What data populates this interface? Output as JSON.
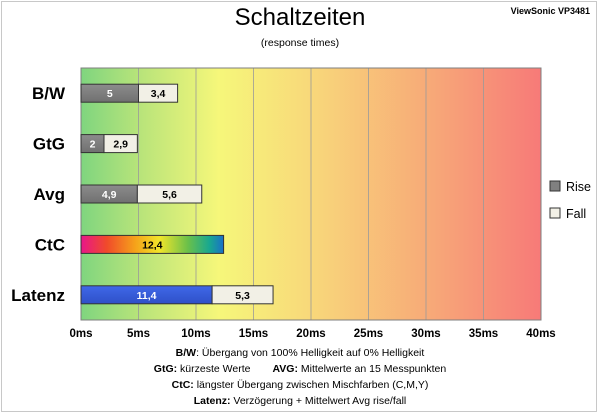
{
  "chart_data": {
    "type": "bar",
    "orientation": "horizontal",
    "stacked": true,
    "title": "Schaltzeiten",
    "subtitle": "(response times)",
    "brand": "ViewSonic VP3481",
    "categories": [
      "B/W",
      "GtG",
      "Avg",
      "CtC",
      "Latenz"
    ],
    "series": [
      {
        "name": "Rise",
        "values": [
          5,
          2,
          4.9,
          null,
          null
        ],
        "color": "#808080"
      },
      {
        "name": "Fall",
        "values": [
          3.4,
          2.9,
          5.6,
          null,
          5.3
        ],
        "color": "#f2f0e6"
      }
    ],
    "single_bars": {
      "CtC": {
        "value": 12.4,
        "label": "12,4",
        "fill": "rainbow-gradient"
      },
      "Latenz": {
        "value": 11.4,
        "label": "11,4",
        "color": "#3a5fd8"
      }
    },
    "data_labels": {
      "B/W": [
        "5",
        "3,4"
      ],
      "GtG": [
        "2",
        "2,9"
      ],
      "Avg": [
        "4,9",
        "5,6"
      ],
      "CtC": [
        "12,4"
      ],
      "Latenz": [
        "11,4",
        "5,3"
      ]
    },
    "xlim": [
      0,
      40
    ],
    "xticks": [
      "0ms",
      "5ms",
      "10ms",
      "15ms",
      "20ms",
      "25ms",
      "30ms",
      "35ms",
      "40ms"
    ],
    "grid": true,
    "legend_position": "right",
    "background": "green-yellow-red gradient (fast to slow)"
  },
  "footnotes": {
    "bw_key": "B/W",
    "bw_text": ":  Übergang von 100% Helligkeit auf 0% Helligkeit",
    "gtg_key": "GtG:",
    "gtg_text": " kürzeste  Werte",
    "avg_key": "AVG:",
    "avg_text": " Mittelwerte  an 15 Messpunkten",
    "ctc_key": "CtC:",
    "ctc_text": " längster Übergang  zwischen Mischfarben (C,M,Y)",
    "lat_key": "Latenz:",
    "lat_text": " Verzögerung  + Mittelwert Avg rise/fall"
  }
}
